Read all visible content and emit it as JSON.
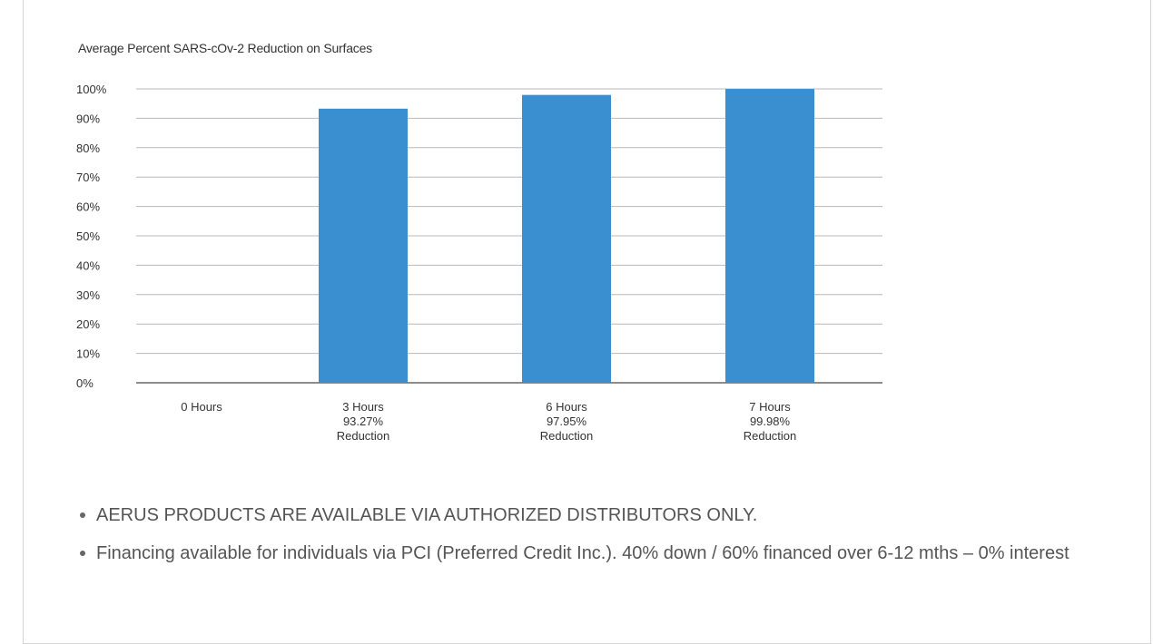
{
  "chart_data": {
    "type": "bar",
    "title": "Average Percent SARS-cOv-2 Reduction on Surfaces",
    "categories": [
      [
        "0 Hours"
      ],
      [
        "3 Hours",
        "93.27%",
        "Reduction"
      ],
      [
        "6 Hours",
        "97.95%",
        "Reduction"
      ],
      [
        "7 Hours",
        "99.98%",
        "Reduction"
      ]
    ],
    "values": [
      0,
      93.27,
      97.95,
      99.98
    ],
    "ylim": [
      0,
      100
    ],
    "yticks": [
      "0%",
      "10%",
      "20%",
      "30%",
      "40%",
      "50%",
      "60%",
      "70%",
      "80%",
      "90%",
      "100%"
    ],
    "grid": true,
    "bar_color": "#3a8fd1"
  },
  "bullets": [
    "AERUS PRODUCTS ARE AVAILABLE VIA AUTHORIZED DISTRIBUTORS ONLY.",
    "Financing available for individuals via PCI (Preferred Credit Inc.). 40% down / 60% financed over 6-12 mths – 0% interest"
  ]
}
